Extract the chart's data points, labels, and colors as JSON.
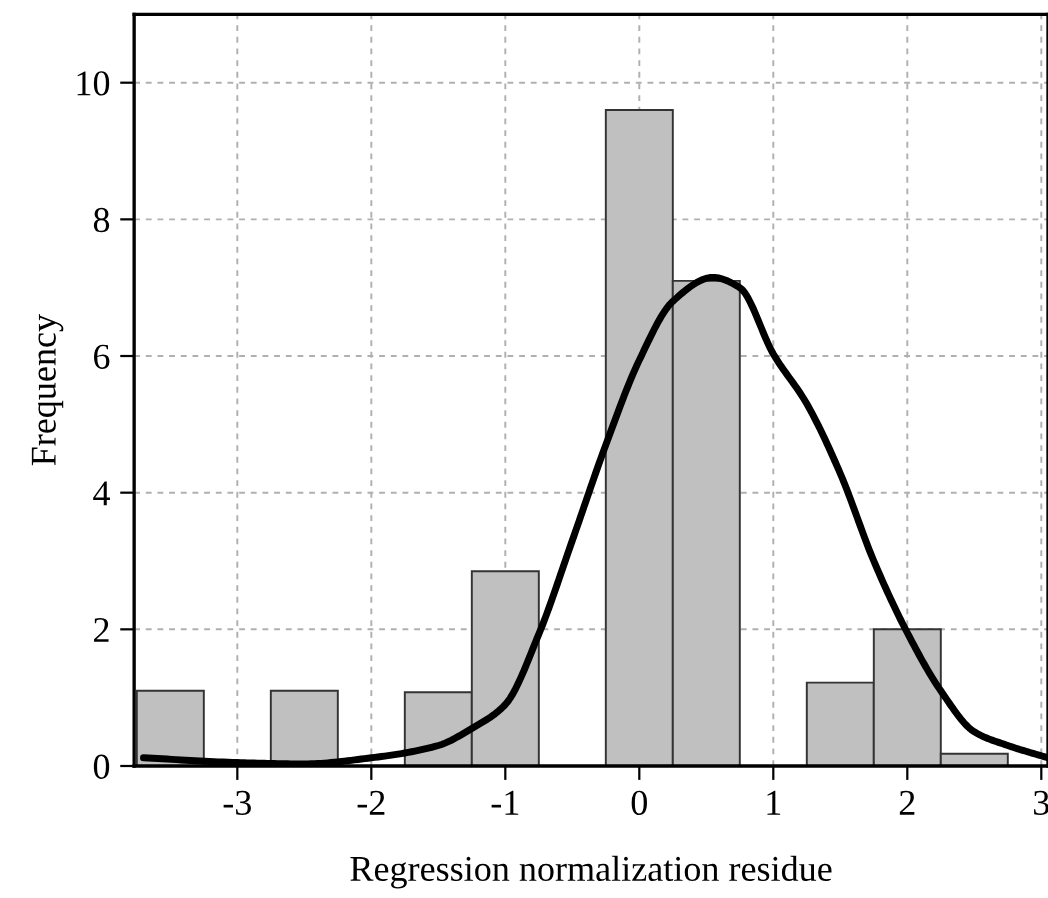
{
  "chart_data": {
    "type": "histogram",
    "xlabel": "Regression normalization residue",
    "ylabel": "Frequency",
    "bins": [
      -3.75,
      -3.25,
      -2.75,
      -2.25,
      -1.75,
      -1.25,
      -0.75,
      -0.25,
      0.25,
      0.75,
      1.25,
      1.75,
      2.25,
      2.75
    ],
    "values": [
      1.1,
      0,
      1.1,
      0,
      1.08,
      2.85,
      0,
      9.6,
      7.1,
      0,
      1.22,
      2.0,
      0.18
    ],
    "color": "#c0c0c0",
    "series": [
      {
        "type": "line",
        "color": "#000000",
        "x": [
          -3.7,
          -3.0,
          -2.5,
          -2.0,
          -1.5,
          -1.25,
          -1.0,
          -0.75,
          -0.5,
          -0.25,
          0.0,
          0.25,
          0.55,
          0.75,
          1.0,
          1.25,
          1.5,
          1.75,
          2.0,
          2.25,
          2.5,
          2.75,
          3.05
        ],
        "values": [
          0.12,
          0.05,
          0.03,
          0.12,
          0.3,
          0.55,
          0.9,
          1.93,
          3.3,
          4.7,
          5.94,
          6.8,
          7.15,
          7.0,
          6.03,
          5.3,
          4.28,
          3.0,
          1.95,
          1.1,
          0.5,
          0.3,
          0.12
        ]
      }
    ],
    "xlim": [
      -3.77,
      3.05
    ],
    "ylim": [
      0,
      11
    ],
    "xticks": [
      -3,
      -2,
      -1,
      0,
      1,
      2,
      3
    ],
    "yticks": [
      0,
      2,
      4,
      6,
      8,
      10
    ],
    "grid": true,
    "line_style": "solid",
    "marker": "none"
  }
}
